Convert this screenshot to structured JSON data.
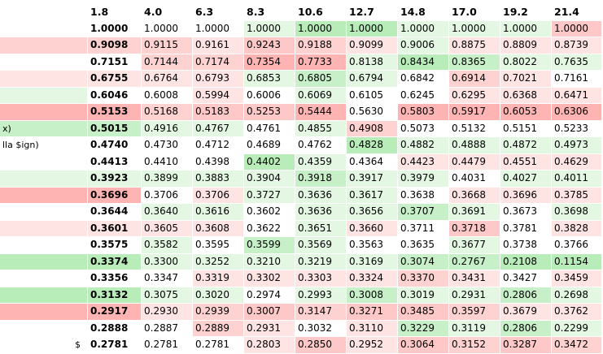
{
  "columns": [
    "",
    "1.8",
    "4.0",
    "6.3",
    "8.3",
    "10.6",
    "12.7",
    "14.8",
    "17.0",
    "19.2",
    "21.4"
  ],
  "rows": [
    {
      "label": "",
      "values": [
        "1.0000",
        "1.0000",
        "1.0000",
        "1.0000",
        "1.0000",
        "1.0000",
        "1.0000",
        "1.0000",
        "1.0000",
        "1.0000"
      ],
      "colors": [
        "#ffffff",
        "#ffffff",
        "#ffffff",
        "#e3f7e3",
        "#b8ecb8",
        "#b8ecb8",
        "#e3f7e3",
        "#e3f7e3",
        "#e3f7e3",
        "#ffc8c8"
      ],
      "labelColor": "#ffffff"
    },
    {
      "label": "",
      "values": [
        "0.9098",
        "0.9115",
        "0.9161",
        "0.9243",
        "0.9188",
        "0.9099",
        "0.9006",
        "0.8875",
        "0.8809",
        "0.8739"
      ],
      "colors": [
        "#ffd2d2",
        "#ffd2d2",
        "#ffe4e4",
        "#ffc8c8",
        "#ffd2d2",
        "#ffe4e4",
        "#e3f7e3",
        "#ffe4e4",
        "#ffe4e4",
        "#ffe4e4"
      ],
      "labelColor": "#ffd2d2"
    },
    {
      "label": "",
      "values": [
        "0.7151",
        "0.7144",
        "0.7174",
        "0.7354",
        "0.7733",
        "0.8138",
        "0.8434",
        "0.8365",
        "0.8022",
        "0.7635"
      ],
      "colors": [
        "#ffffff",
        "#ffd2d2",
        "#ffd2d2",
        "#ffb4b4",
        "#ffb4b4",
        "#e3f7e3",
        "#b8ecb8",
        "#c8f0c8",
        "#e3f7e3",
        "#e3f7e3"
      ],
      "labelColor": "#ffffff"
    },
    {
      "label": "",
      "values": [
        "0.6755",
        "0.6764",
        "0.6793",
        "0.6853",
        "0.6805",
        "0.6794",
        "0.6842",
        "0.6914",
        "0.7021",
        "0.7161"
      ],
      "colors": [
        "#ffe4e4",
        "#ffe4e4",
        "#ffe4e4",
        "#e3f7e3",
        "#c8f0c8",
        "#e3f7e3",
        "#ffffff",
        "#ffd2d2",
        "#ffe4e4",
        "#ffffff"
      ],
      "labelColor": "#ffe4e4"
    },
    {
      "label": "",
      "values": [
        "0.6046",
        "0.6008",
        "0.5994",
        "0.6006",
        "0.6069",
        "0.6105",
        "0.6245",
        "0.6295",
        "0.6368",
        "0.6471"
      ],
      "colors": [
        "#ffffff",
        "#ffffff",
        "#ffe4e4",
        "#ffffff",
        "#e3f7e3",
        "#ffffff",
        "#ffffff",
        "#ffe4e4",
        "#ffe4e4",
        "#ffe4e4"
      ],
      "labelColor": "#e3f7e3"
    },
    {
      "label": "",
      "values": [
        "0.5153",
        "0.5168",
        "0.5183",
        "0.5253",
        "0.5444",
        "0.5630",
        "0.5803",
        "0.5917",
        "0.6053",
        "0.6306"
      ],
      "colors": [
        "#ffb4b4",
        "#ffd2d2",
        "#ffc8c8",
        "#ffc8c8",
        "#ffb4b4",
        "#ffffff",
        "#ffb4b4",
        "#ffb4b4",
        "#ffb4b4",
        "#ffb4b4"
      ],
      "labelColor": "#ffb4b4"
    },
    {
      "label": "x)",
      "values": [
        "0.5015",
        "0.4916",
        "0.4767",
        "0.4761",
        "0.4855",
        "0.4908",
        "0.5073",
        "0.5132",
        "0.5151",
        "0.5233"
      ],
      "colors": [
        "#c8f0c8",
        "#e3f7e3",
        "#e3f7e3",
        "#ffffff",
        "#e3f7e3",
        "#ffd2d2",
        "#ffffff",
        "#ffffff",
        "#ffffff",
        "#ffffff"
      ],
      "labelColor": "#c8f0c8"
    },
    {
      "label": "lla $ign)",
      "values": [
        "0.4740",
        "0.4730",
        "0.4712",
        "0.4689",
        "0.4762",
        "0.4828",
        "0.4882",
        "0.4888",
        "0.4872",
        "0.4973"
      ],
      "colors": [
        "#ffffff",
        "#ffffff",
        "#ffffff",
        "#ffffff",
        "#ffffff",
        "#b8ecb8",
        "#e3f7e3",
        "#e3f7e3",
        "#e3f7e3",
        "#e3f7e3"
      ],
      "labelColor": "#ffffff"
    },
    {
      "label": "",
      "values": [
        "0.4413",
        "0.4410",
        "0.4398",
        "0.4402",
        "0.4359",
        "0.4364",
        "0.4423",
        "0.4479",
        "0.4551",
        "0.4629"
      ],
      "colors": [
        "#ffffff",
        "#ffffff",
        "#ffffff",
        "#b8ecb8",
        "#e3f7e3",
        "#ffffff",
        "#ffe4e4",
        "#ffe4e4",
        "#ffe4e4",
        "#ffe4e4"
      ],
      "labelColor": "#ffffff"
    },
    {
      "label": "",
      "values": [
        "0.3923",
        "0.3899",
        "0.3883",
        "0.3904",
        "0.3918",
        "0.3917",
        "0.3979",
        "0.4031",
        "0.4027",
        "0.4011"
      ],
      "colors": [
        "#e3f7e3",
        "#e3f7e3",
        "#e3f7e3",
        "#e3f7e3",
        "#c8f0c8",
        "#e3f7e3",
        "#e3f7e3",
        "#ffffff",
        "#e3f7e3",
        "#e3f7e3"
      ],
      "labelColor": "#e3f7e3"
    },
    {
      "label": "",
      "values": [
        "0.3696",
        "0.3706",
        "0.3706",
        "0.3727",
        "0.3636",
        "0.3617",
        "0.3638",
        "0.3668",
        "0.3696",
        "0.3785"
      ],
      "colors": [
        "#ffb4b4",
        "#ffffff",
        "#ffe4e4",
        "#e3f7e3",
        "#e3f7e3",
        "#e3f7e3",
        "#ffffff",
        "#ffe4e4",
        "#ffe4e4",
        "#ffe4e4"
      ],
      "labelColor": "#ffb4b4"
    },
    {
      "label": "",
      "values": [
        "0.3644",
        "0.3640",
        "0.3616",
        "0.3602",
        "0.3636",
        "0.3656",
        "0.3707",
        "0.3691",
        "0.3673",
        "0.3698"
      ],
      "colors": [
        "#ffffff",
        "#e3f7e3",
        "#e3f7e3",
        "#ffffff",
        "#e3f7e3",
        "#e3f7e3",
        "#c8f0c8",
        "#e3f7e3",
        "#ffffff",
        "#e3f7e3"
      ],
      "labelColor": "#ffffff"
    },
    {
      "label": "",
      "values": [
        "0.3601",
        "0.3605",
        "0.3608",
        "0.3622",
        "0.3651",
        "0.3660",
        "0.3711",
        "0.3718",
        "0.3781",
        "0.3828"
      ],
      "colors": [
        "#ffe4e4",
        "#ffe4e4",
        "#ffe4e4",
        "#ffffff",
        "#e3f7e3",
        "#ffe4e4",
        "#ffffff",
        "#ffc8c8",
        "#ffffff",
        "#ffe4e4"
      ],
      "labelColor": "#ffe4e4"
    },
    {
      "label": "",
      "values": [
        "0.3575",
        "0.3582",
        "0.3595",
        "0.3599",
        "0.3569",
        "0.3563",
        "0.3635",
        "0.3677",
        "0.3738",
        "0.3766"
      ],
      "colors": [
        "#ffffff",
        "#e3f7e3",
        "#ffffff",
        "#c8f0c8",
        "#e3f7e3",
        "#ffffff",
        "#ffffff",
        "#e3f7e3",
        "#ffffff",
        "#ffffff"
      ],
      "labelColor": "#ffffff"
    },
    {
      "label": "",
      "values": [
        "0.3374",
        "0.3300",
        "0.3252",
        "0.3210",
        "0.3219",
        "0.3169",
        "0.3074",
        "0.2767",
        "0.2108",
        "0.1154"
      ],
      "colors": [
        "#b8ecb8",
        "#e3f7e3",
        "#e3f7e3",
        "#e3f7e3",
        "#e3f7e3",
        "#e3f7e3",
        "#c8f0c8",
        "#c8f0c8",
        "#b8ecb8",
        "#b8ecb8"
      ],
      "labelColor": "#b8ecb8"
    },
    {
      "label": "",
      "values": [
        "0.3356",
        "0.3347",
        "0.3319",
        "0.3302",
        "0.3303",
        "0.3324",
        "0.3370",
        "0.3431",
        "0.3427",
        "0.3459"
      ],
      "colors": [
        "#ffffff",
        "#ffffff",
        "#ffe4e4",
        "#ffe4e4",
        "#ffe4e4",
        "#ffe4e4",
        "#ffd2d2",
        "#ffe4e4",
        "#ffffff",
        "#ffe4e4"
      ],
      "labelColor": "#ffffff"
    },
    {
      "label": "",
      "values": [
        "0.3132",
        "0.3075",
        "0.3020",
        "0.2974",
        "0.2993",
        "0.3008",
        "0.3019",
        "0.2931",
        "0.2806",
        "0.2698"
      ],
      "colors": [
        "#b8ecb8",
        "#e3f7e3",
        "#e3f7e3",
        "#ffffff",
        "#e3f7e3",
        "#c8f0c8",
        "#e3f7e3",
        "#e3f7e3",
        "#c8f0c8",
        "#e3f7e3"
      ],
      "labelColor": "#b8ecb8"
    },
    {
      "label": "",
      "values": [
        "0.2917",
        "0.2930",
        "0.2939",
        "0.3007",
        "0.3147",
        "0.3271",
        "0.3485",
        "0.3597",
        "0.3679",
        "0.3762"
      ],
      "colors": [
        "#ffb4b4",
        "#ffe4e4",
        "#ffd2d2",
        "#ffc8c8",
        "#ffd2d2",
        "#ffc8c8",
        "#ffc8c8",
        "#ffd2d2",
        "#ffe4e4",
        "#ffe4e4"
      ],
      "labelColor": "#ffb4b4"
    },
    {
      "label": "",
      "values": [
        "0.2888",
        "0.2887",
        "0.2889",
        "0.2931",
        "0.3032",
        "0.3110",
        "0.3229",
        "0.3119",
        "0.2806",
        "0.2299"
      ],
      "colors": [
        "#ffffff",
        "#ffffff",
        "#ffd2d2",
        "#ffe4e4",
        "#ffffff",
        "#ffe4e4",
        "#c8f0c8",
        "#e3f7e3",
        "#c8f0c8",
        "#e3f7e3"
      ],
      "labelColor": "#ffffff"
    },
    {
      "label": "$",
      "labelAlign": "right",
      "values": [
        "0.2781",
        "0.2781",
        "0.2781",
        "0.2803",
        "0.2850",
        "0.2952",
        "0.3064",
        "0.3152",
        "0.3287",
        "0.3472"
      ],
      "colors": [
        "#ffffff",
        "#ffffff",
        "#ffffff",
        "#ffe4e4",
        "#ffc8c8",
        "#ffe4e4",
        "#ffc8c8",
        "#ffd2d2",
        "#ffc8c8",
        "#ffd2d2"
      ],
      "labelColor": "#ffffff"
    }
  ]
}
